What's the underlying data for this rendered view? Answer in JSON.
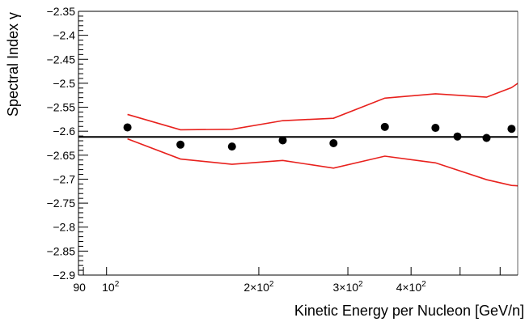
{
  "chart_data": {
    "type": "scatter",
    "xlabel": "Kinetic Energy per Nucleon [GeV/n]",
    "ylabel": "Spectral Index γ",
    "x_scale": "log",
    "xlim": [
      88,
      650
    ],
    "ylim": [
      -2.9,
      -2.35
    ],
    "grid": false,
    "y_ticks": [
      "−2.35",
      "−2.4",
      "−2.45",
      "−2.5",
      "−2.55",
      "−2.6",
      "−2.65",
      "−2.7",
      "−2.75",
      "−2.8",
      "−2.85",
      "−2.9"
    ],
    "x_tick_labels": [
      {
        "value": 90,
        "mantissa": "90",
        "exponent": ""
      },
      {
        "value": 100,
        "mantissa": "10",
        "exponent": "2"
      },
      {
        "value": 200,
        "mantissa": "2×10",
        "exponent": "2"
      },
      {
        "value": 300,
        "mantissa": "3×10",
        "exponent": "2"
      },
      {
        "value": 400,
        "mantissa": "4×10",
        "exponent": "2"
      }
    ],
    "x_ticks_all": [
      90,
      100,
      200,
      300,
      400,
      500,
      600
    ],
    "points": {
      "x": [
        110,
        140,
        177,
        223,
        281,
        355,
        447,
        564,
        494,
        632
      ],
      "y": [
        -2.592,
        -2.628,
        -2.632,
        -2.619,
        -2.625,
        -2.591,
        -2.593,
        -2.614,
        -2.611,
        -2.595
      ]
    },
    "reference_line": {
      "y": -2.612,
      "color": "#000000"
    },
    "band_upper": {
      "x": [
        110,
        140,
        177,
        223,
        281,
        355,
        447,
        564,
        632,
        710
      ],
      "y": [
        -2.565,
        -2.597,
        -2.596,
        -2.578,
        -2.573,
        -2.531,
        -2.522,
        -2.529,
        -2.509,
        -2.473
      ],
      "color": "#e8211d"
    },
    "band_lower": {
      "x": [
        110,
        140,
        177,
        223,
        281,
        355,
        447,
        564,
        632,
        710
      ],
      "y": [
        -2.616,
        -2.658,
        -2.669,
        -2.661,
        -2.677,
        -2.652,
        -2.666,
        -2.701,
        -2.713,
        -2.717
      ],
      "color": "#e8211d"
    }
  }
}
